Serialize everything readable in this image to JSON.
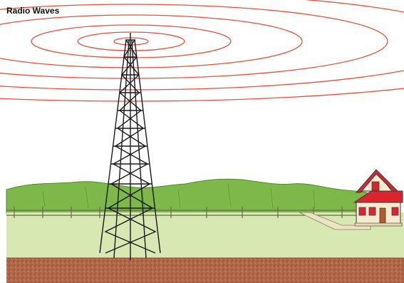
{
  "title": "Radio Waves",
  "colors": {
    "sky": "#ffffff",
    "wave": "#e8503a",
    "hills": "#7fb84a",
    "hills_dark": "#4f8a2a",
    "grass": "#d8e8b2",
    "soil": "#b4684a",
    "tower": "#1a1a1a",
    "fence": "#6b6b4a",
    "house_wall": "#f3ead0",
    "house_roof": "#d9262e",
    "path": "#ece3c2"
  },
  "icons": [
    "radio-tower",
    "radio-wave-rings",
    "farm-house",
    "fence",
    "hills"
  ]
}
